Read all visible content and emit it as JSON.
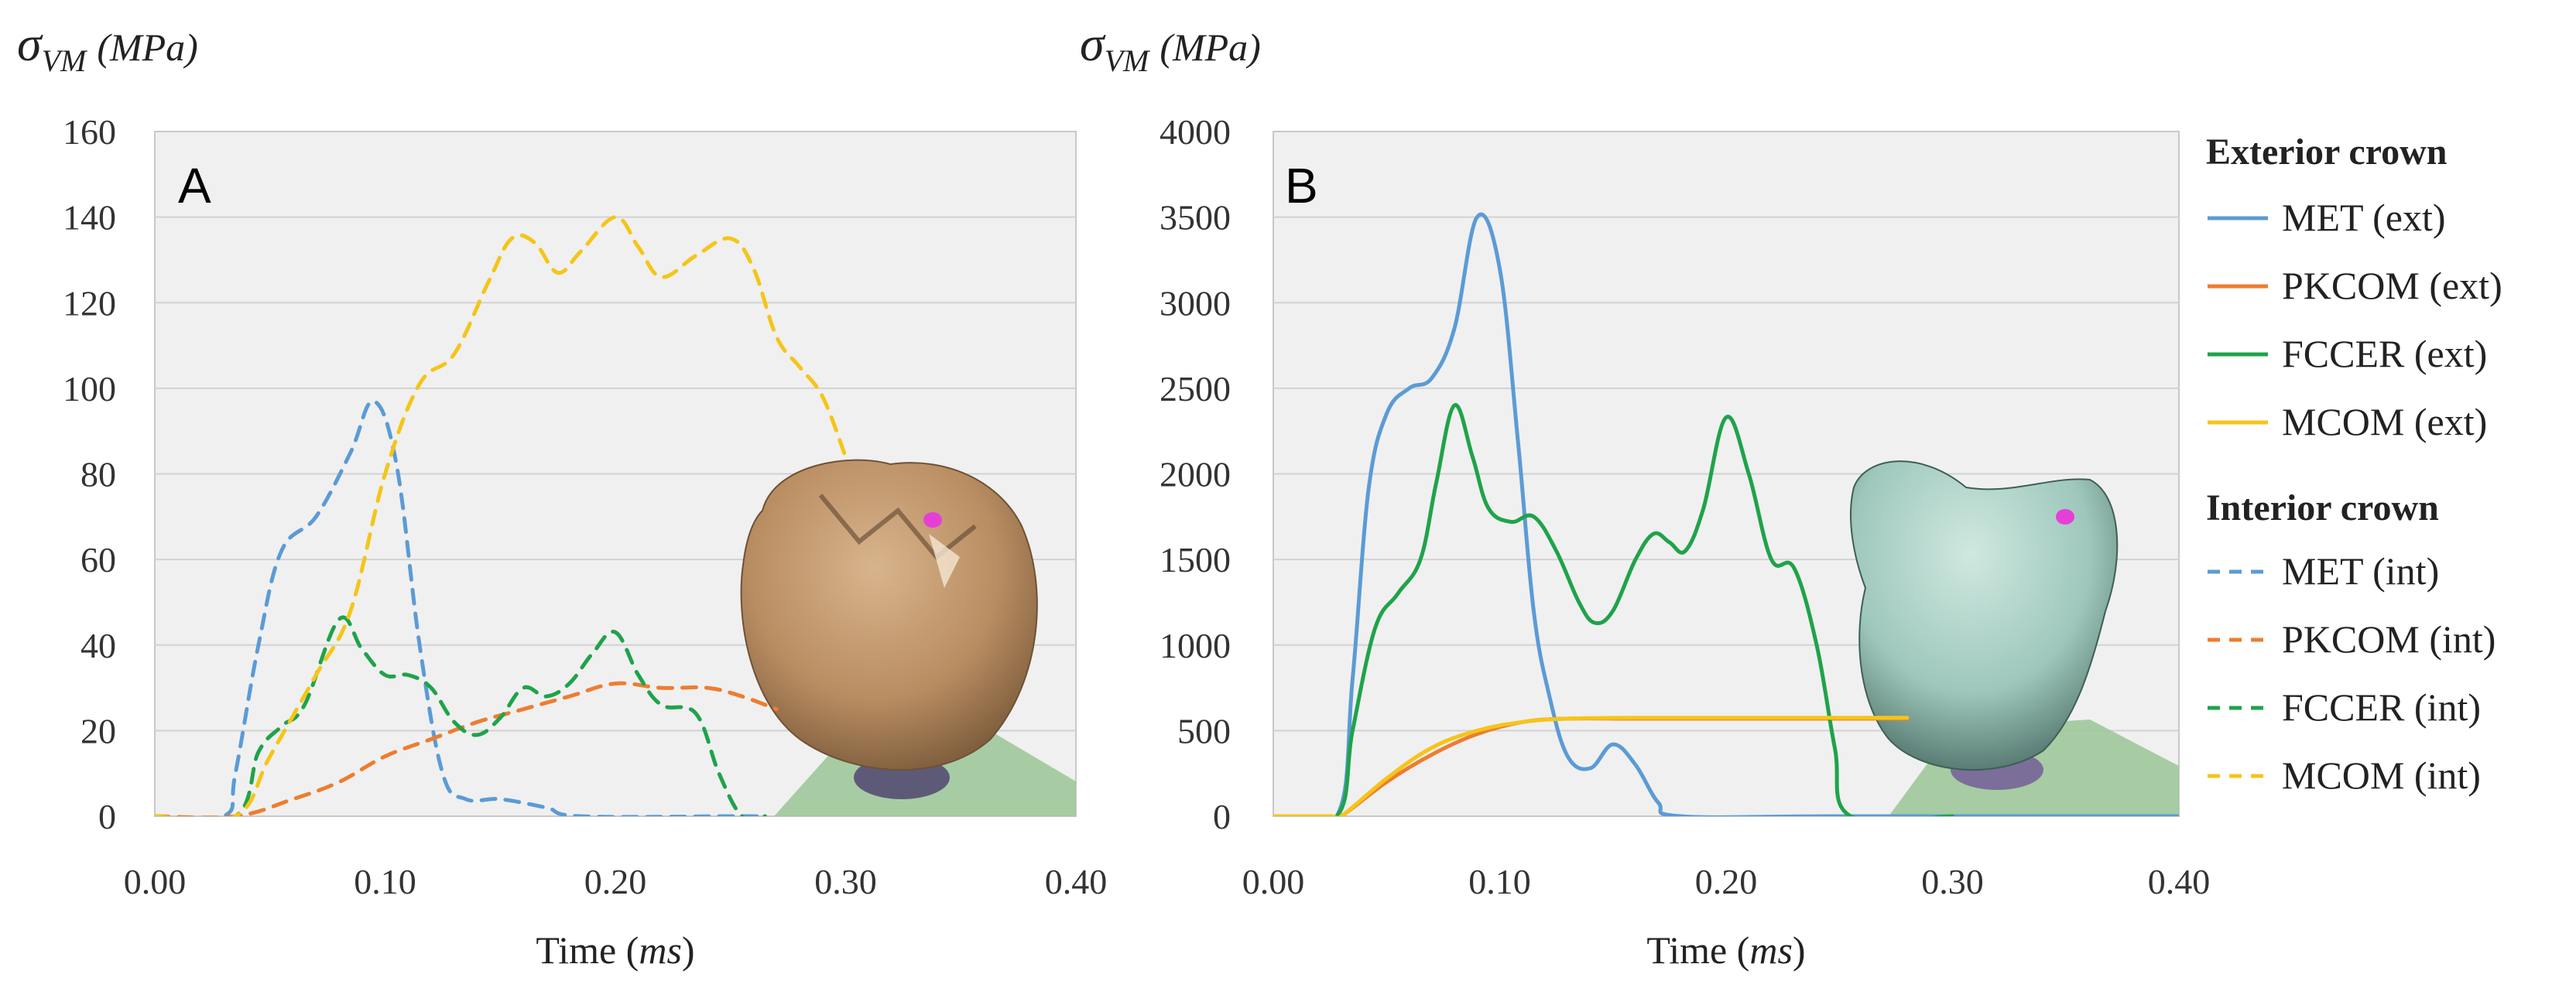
{
  "chart_data": [
    {
      "panel": "A",
      "type": "line",
      "xlabel_prefix": "Time (",
      "xlabel_unit": "ms",
      "xlabel_suffix": ")",
      "ylabel_symbol": "σ",
      "ylabel_sub": "VM",
      "ylabel_unit": "(MPa)",
      "xlim": [
        0,
        0.4
      ],
      "ylim": [
        0,
        160
      ],
      "xticks": [
        "0.00",
        "0.10",
        "0.20",
        "0.30",
        "0.40"
      ],
      "yticks": [
        "0",
        "20",
        "40",
        "60",
        "80",
        "100",
        "120",
        "140",
        "160"
      ],
      "grid": true,
      "series": [
        {
          "name": "MET (int)",
          "color": "#5b9bd5",
          "dash": true,
          "points": [
            [
              0,
              0
            ],
            [
              0.03,
              0
            ],
            [
              0.035,
              10
            ],
            [
              0.045,
              40
            ],
            [
              0.055,
              62
            ],
            [
              0.07,
              70
            ],
            [
              0.085,
              85
            ],
            [
              0.095,
              97
            ],
            [
              0.105,
              82
            ],
            [
              0.115,
              40
            ],
            [
              0.125,
              10
            ],
            [
              0.135,
              4
            ],
            [
              0.15,
              4
            ],
            [
              0.17,
              2
            ],
            [
              0.185,
              0
            ],
            [
              0.25,
              0
            ],
            [
              0.265,
              0
            ]
          ]
        },
        {
          "name": "PKCOM (int)",
          "color": "#ed7d31",
          "dash": true,
          "points": [
            [
              0,
              0
            ],
            [
              0.035,
              0
            ],
            [
              0.06,
              4
            ],
            [
              0.08,
              8
            ],
            [
              0.1,
              14
            ],
            [
              0.12,
              18
            ],
            [
              0.14,
              22
            ],
            [
              0.16,
              25
            ],
            [
              0.18,
              28
            ],
            [
              0.2,
              31
            ],
            [
              0.22,
              30
            ],
            [
              0.24,
              30
            ],
            [
              0.255,
              28
            ],
            [
              0.27,
              25
            ]
          ]
        },
        {
          "name": "FCCER (int)",
          "color": "#1fa34a",
          "dash": true,
          "points": [
            [
              0,
              0
            ],
            [
              0.035,
              0
            ],
            [
              0.045,
              15
            ],
            [
              0.055,
              21
            ],
            [
              0.065,
              26
            ],
            [
              0.08,
              46
            ],
            [
              0.09,
              39
            ],
            [
              0.1,
              33
            ],
            [
              0.11,
              33
            ],
            [
              0.12,
              30
            ],
            [
              0.13,
              22
            ],
            [
              0.14,
              19
            ],
            [
              0.15,
              23
            ],
            [
              0.16,
              30
            ],
            [
              0.17,
              28
            ],
            [
              0.18,
              31
            ],
            [
              0.19,
              38
            ],
            [
              0.2,
              43
            ],
            [
              0.21,
              33
            ],
            [
              0.22,
              26
            ],
            [
              0.235,
              24
            ],
            [
              0.245,
              10
            ],
            [
              0.255,
              0
            ],
            [
              0.265,
              0
            ]
          ]
        },
        {
          "name": "MCOM (int)",
          "color": "#f5c518",
          "dash": true,
          "points": [
            [
              0,
              0
            ],
            [
              0.035,
              0
            ],
            [
              0.05,
              14
            ],
            [
              0.07,
              33
            ],
            [
              0.085,
              48
            ],
            [
              0.1,
              80
            ],
            [
              0.115,
              101
            ],
            [
              0.13,
              108
            ],
            [
              0.145,
              125
            ],
            [
              0.155,
              135
            ],
            [
              0.165,
              134
            ],
            [
              0.175,
              127
            ],
            [
              0.185,
              132
            ],
            [
              0.2,
              140
            ],
            [
              0.21,
              133
            ],
            [
              0.22,
              126
            ],
            [
              0.235,
              131
            ],
            [
              0.25,
              135
            ],
            [
              0.26,
              128
            ],
            [
              0.27,
              112
            ],
            [
              0.28,
              105
            ],
            [
              0.29,
              98
            ],
            [
              0.3,
              84
            ]
          ]
        }
      ]
    },
    {
      "panel": "B",
      "type": "line",
      "xlabel_prefix": "Time (",
      "xlabel_unit": "ms",
      "xlabel_suffix": ")",
      "ylabel_symbol": "σ",
      "ylabel_sub": "VM",
      "ylabel_unit": "(MPa)",
      "xlim": [
        0,
        0.4
      ],
      "ylim": [
        0,
        4000
      ],
      "xticks": [
        "0.00",
        "0.10",
        "0.20",
        "0.30",
        "0.40"
      ],
      "yticks": [
        "0",
        "500",
        "1000",
        "1500",
        "2000",
        "2500",
        "3000",
        "3500",
        "4000"
      ],
      "grid": true,
      "series": [
        {
          "name": "MET (ext)",
          "color": "#5b9bd5",
          "dash": false,
          "points": [
            [
              0,
              0
            ],
            [
              0.028,
              0
            ],
            [
              0.035,
              800
            ],
            [
              0.042,
              1900
            ],
            [
              0.05,
              2350
            ],
            [
              0.06,
              2500
            ],
            [
              0.07,
              2560
            ],
            [
              0.08,
              2850
            ],
            [
              0.09,
              3500
            ],
            [
              0.1,
              3200
            ],
            [
              0.108,
              2200
            ],
            [
              0.115,
              1200
            ],
            [
              0.122,
              700
            ],
            [
              0.13,
              350
            ],
            [
              0.14,
              280
            ],
            [
              0.15,
              420
            ],
            [
              0.16,
              300
            ],
            [
              0.17,
              80
            ],
            [
              0.18,
              0
            ],
            [
              0.25,
              0
            ],
            [
              0.4,
              0
            ]
          ]
        },
        {
          "name": "PKCOM (ext)",
          "color": "#ed7d31",
          "dash": false,
          "points": [
            [
              0.025,
              0
            ],
            [
              0.03,
              0
            ],
            [
              0.05,
              200
            ],
            [
              0.07,
              360
            ],
            [
              0.09,
              480
            ],
            [
              0.11,
              550
            ],
            [
              0.13,
              570
            ],
            [
              0.16,
              570
            ],
            [
              0.2,
              570
            ],
            [
              0.25,
              570
            ],
            [
              0.28,
              570
            ]
          ]
        },
        {
          "name": "FCCER (ext)",
          "color": "#1fa34a",
          "dash": false,
          "points": [
            [
              0,
              0
            ],
            [
              0.028,
              0
            ],
            [
              0.035,
              500
            ],
            [
              0.045,
              1100
            ],
            [
              0.055,
              1300
            ],
            [
              0.065,
              1500
            ],
            [
              0.072,
              1950
            ],
            [
              0.08,
              2400
            ],
            [
              0.088,
              2100
            ],
            [
              0.095,
              1800
            ],
            [
              0.105,
              1720
            ],
            [
              0.115,
              1750
            ],
            [
              0.125,
              1550
            ],
            [
              0.135,
              1250
            ],
            [
              0.142,
              1130
            ],
            [
              0.15,
              1200
            ],
            [
              0.16,
              1500
            ],
            [
              0.168,
              1650
            ],
            [
              0.175,
              1600
            ],
            [
              0.182,
              1550
            ],
            [
              0.19,
              1800
            ],
            [
              0.2,
              2330
            ],
            [
              0.21,
              2000
            ],
            [
              0.22,
              1500
            ],
            [
              0.23,
              1450
            ],
            [
              0.24,
              1000
            ],
            [
              0.248,
              400
            ],
            [
              0.255,
              0
            ],
            [
              0.3,
              0
            ]
          ]
        },
        {
          "name": "MCOM (ext)",
          "color": "#f5c518",
          "dash": false,
          "points": [
            [
              0,
              0
            ],
            [
              0.025,
              0
            ],
            [
              0.03,
              0
            ],
            [
              0.05,
              220
            ],
            [
              0.07,
              400
            ],
            [
              0.09,
              500
            ],
            [
              0.11,
              550
            ],
            [
              0.13,
              570
            ],
            [
              0.16,
              575
            ],
            [
              0.2,
              575
            ],
            [
              0.25,
              575
            ],
            [
              0.28,
              575
            ]
          ]
        }
      ]
    }
  ],
  "legend": {
    "ext_title": "Exterior crown",
    "ext_items": [
      {
        "label": "MET (ext)",
        "color": "#5b9bd5",
        "dash": false
      },
      {
        "label": "PKCOM (ext)",
        "color": "#ed7d31",
        "dash": false
      },
      {
        "label": "FCCER (ext)",
        "color": "#1fa34a",
        "dash": false
      },
      {
        "label": "MCOM (ext)",
        "color": "#f5c518",
        "dash": false
      }
    ],
    "int_title": "Interior crown",
    "int_items": [
      {
        "label": "MET (int)",
        "color": "#5b9bd5",
        "dash": true
      },
      {
        "label": "PKCOM (int)",
        "color": "#ed7d31",
        "dash": true
      },
      {
        "label": "FCCER (int)",
        "color": "#1fa34a",
        "dash": true
      },
      {
        "label": "MCOM (int)",
        "color": "#f5c518",
        "dash": true
      }
    ]
  },
  "colors": {
    "plot_bg": "#f0f0f0",
    "grid": "#d2d2d2",
    "crown_a": "#b98d62",
    "crown_b": "#9ec7bb",
    "abutment": "#9fc89a",
    "marker": "#e63fd8"
  }
}
